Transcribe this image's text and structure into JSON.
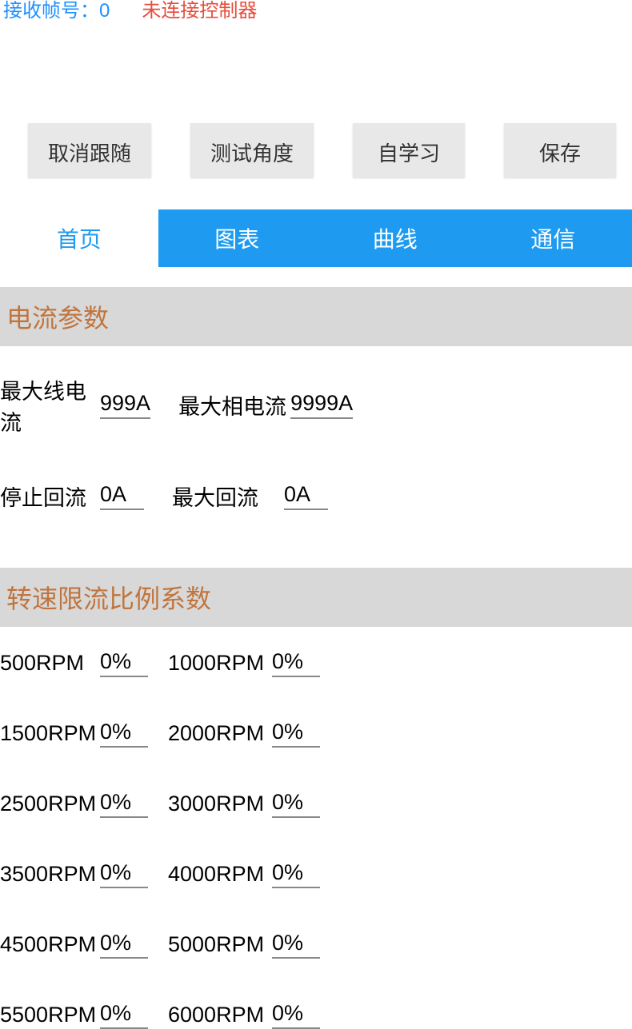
{
  "status": {
    "frame_label": "接收帧号：0",
    "connection_label": "未连接控制器"
  },
  "buttons": {
    "cancel_follow": "取消跟随",
    "test_angle": "测试角度",
    "self_learn": "自学习",
    "save": "保存"
  },
  "tabs": {
    "home": "首页",
    "chart": "图表",
    "curve": "曲线",
    "comm": "通信"
  },
  "sections": {
    "current_params": {
      "title": "电流参数",
      "params": [
        {
          "label1": "最大线电流",
          "value1": "999A",
          "label2": "最大相电流",
          "value2": "9999A"
        },
        {
          "label1": "停止回流",
          "value1": "0A",
          "label2": "最大回流",
          "value2": "0A"
        }
      ]
    },
    "rpm_limit": {
      "title": "转速限流比例系数",
      "rows": [
        {
          "label1": "500RPM",
          "value1": "0%",
          "label2": "1000RPM",
          "value2": "0%"
        },
        {
          "label1": "1500RPM",
          "value1": "0%",
          "label2": "2000RPM",
          "value2": "0%"
        },
        {
          "label1": "2500RPM",
          "value1": "0%",
          "label2": "3000RPM",
          "value2": "0%"
        },
        {
          "label1": "3500RPM",
          "value1": "0%",
          "label2": "4000RPM",
          "value2": "0%"
        },
        {
          "label1": "4500RPM",
          "value1": "0%",
          "label2": "5000RPM",
          "value2": "0%"
        },
        {
          "label1": "5500RPM",
          "value1": "0%",
          "label2": "6000RPM",
          "value2": "0%"
        }
      ]
    }
  },
  "colors": {
    "tab_bg": "#1e9bf0",
    "tab_active_text": "#1e9bf0",
    "section_header_bg": "#d8d8d8",
    "section_header_text": "#c0753e",
    "button_bg": "#e8e8e8",
    "status_frame": "#1e90ff",
    "status_conn": "#e74c3c"
  }
}
